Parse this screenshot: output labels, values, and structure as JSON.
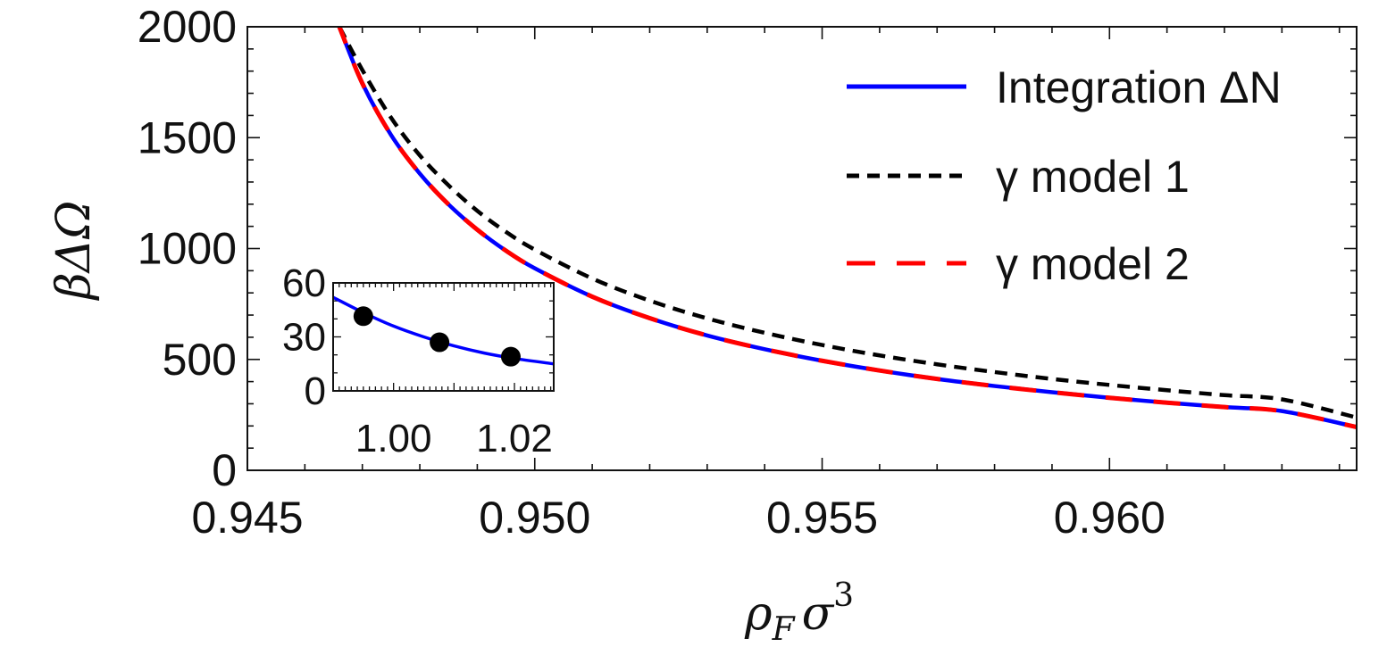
{
  "chart_data": [
    {
      "type": "line",
      "xlabel": "ρFσ3",
      "xlabel_parts": {
        "base": "ρ",
        "sub": "F",
        "main2": "σ",
        "sup": "3"
      },
      "ylabel": "βΔΩ",
      "xlim": [
        0.945,
        0.9643
      ],
      "ylim": [
        0,
        2000
      ],
      "x_ticks": [
        0.945,
        0.95,
        0.955,
        0.96
      ],
      "x_tick_labels": [
        "0.945",
        "0.950",
        "0.955",
        "0.960"
      ],
      "y_ticks": [
        0,
        500,
        1000,
        1500,
        2000
      ],
      "y_tick_labels": [
        "0",
        "500",
        "1000",
        "1500",
        "2000"
      ],
      "grid": false,
      "legend_position": "top-right",
      "series": [
        {
          "name": "Integration ΔN",
          "color": "#0000ff",
          "style": "solid",
          "x": [
            0.9466,
            0.947,
            0.9475,
            0.948,
            0.9485,
            0.949,
            0.9495,
            0.95,
            0.951,
            0.952,
            0.953,
            0.954,
            0.955,
            0.956,
            0.957,
            0.958,
            0.959,
            0.96,
            0.961,
            0.962,
            0.963,
            0.9643
          ],
          "y": [
            2000,
            1745,
            1512,
            1338,
            1199,
            1085,
            990,
            911,
            783,
            686,
            608,
            546,
            494,
            450,
            412,
            380,
            352,
            327,
            305,
            285,
            267,
            195
          ]
        },
        {
          "name": "γ model 1",
          "color": "#000000",
          "style": "short-dash",
          "x": [
            0.9466,
            0.947,
            0.9475,
            0.948,
            0.9485,
            0.949,
            0.9495,
            0.95,
            0.951,
            0.952,
            0.953,
            0.954,
            0.955,
            0.956,
            0.957,
            0.958,
            0.959,
            0.96,
            0.961,
            0.962,
            0.963,
            0.9643
          ],
          "y": [
            2000,
            1805,
            1590,
            1420,
            1285,
            1170,
            1075,
            995,
            865,
            765,
            685,
            620,
            565,
            518,
            478,
            443,
            412,
            385,
            361,
            339,
            320,
            238
          ]
        },
        {
          "name": "γ model 2",
          "color": "#ff0000",
          "style": "long-dash",
          "x": [
            0.9466,
            0.947,
            0.9475,
            0.948,
            0.9485,
            0.949,
            0.9495,
            0.95,
            0.951,
            0.952,
            0.953,
            0.954,
            0.955,
            0.956,
            0.957,
            0.958,
            0.959,
            0.96,
            0.961,
            0.962,
            0.963,
            0.9643
          ],
          "y": [
            2000,
            1745,
            1512,
            1338,
            1199,
            1085,
            990,
            911,
            783,
            686,
            608,
            546,
            494,
            450,
            412,
            380,
            352,
            327,
            305,
            285,
            267,
            195
          ]
        }
      ]
    },
    {
      "type": "line",
      "role": "inset",
      "xlim": [
        0.99,
        1.0265
      ],
      "ylim": [
        0,
        60
      ],
      "x_ticks": [
        1.0,
        1.02
      ],
      "x_tick_labels": [
        "1.00",
        "1.02"
      ],
      "y_ticks": [
        0,
        30,
        60
      ],
      "y_tick_labels": [
        "0",
        "30",
        "60"
      ],
      "series": [
        {
          "color": "#0000ff",
          "style": "solid",
          "x": [
            0.99,
            0.995,
            1.0,
            1.005,
            1.01,
            1.015,
            1.02,
            1.0265
          ],
          "y": [
            52,
            43.5,
            36,
            30,
            25,
            21,
            18,
            15
          ]
        }
      ],
      "points": {
        "color": "#000000",
        "x": [
          0.995,
          1.0076,
          1.0194
        ],
        "y": [
          41.5,
          27,
          19
        ]
      }
    }
  ]
}
